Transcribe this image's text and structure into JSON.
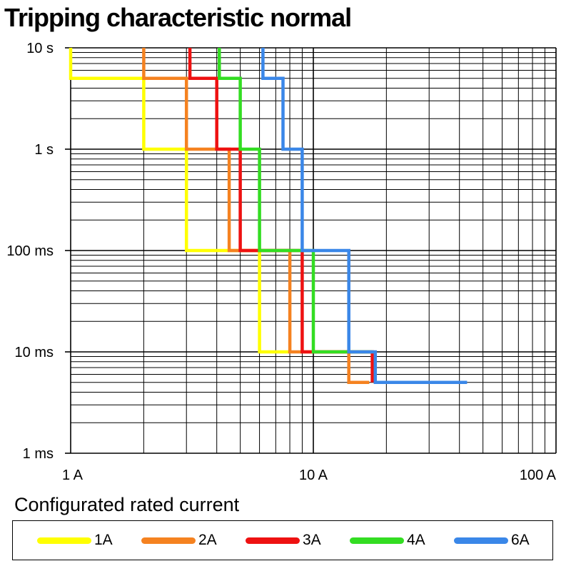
{
  "chart_data": {
    "type": "line",
    "title": "Tripping characteristic normal",
    "x_scale": "log",
    "y_scale": "log",
    "xlim": [
      1,
      100
    ],
    "ylim": [
      0.001,
      10
    ],
    "x_ticks": [
      {
        "value": 1,
        "label": "1 A"
      },
      {
        "value": 10,
        "label": "10 A"
      },
      {
        "value": 100,
        "label": "100 A"
      }
    ],
    "y_ticks": [
      {
        "value": 10,
        "label": "10 s"
      },
      {
        "value": 1,
        "label": "1 s"
      },
      {
        "value": 0.1,
        "label": "100 ms"
      },
      {
        "value": 0.01,
        "label": "10 ms"
      },
      {
        "value": 0.001,
        "label": "1 ms"
      }
    ],
    "grid": true,
    "legend_title": "Configurated rated current",
    "legend_position": "bottom",
    "series": [
      {
        "name": "1A",
        "color": "#ffff00",
        "points": [
          [
            1.0,
            10
          ],
          [
            1.0,
            5
          ],
          [
            2.0,
            5
          ],
          [
            2.0,
            1
          ],
          [
            3.0,
            1
          ],
          [
            3.0,
            0.1
          ],
          [
            6.0,
            0.1
          ],
          [
            6.0,
            0.01
          ],
          [
            8.0,
            0.01
          ]
        ]
      },
      {
        "name": "2A",
        "color": "#f58220",
        "points": [
          [
            2.0,
            10
          ],
          [
            2.0,
            5
          ],
          [
            3.0,
            5
          ],
          [
            3.0,
            1
          ],
          [
            4.5,
            1
          ],
          [
            4.5,
            0.1
          ],
          [
            8.0,
            0.1
          ],
          [
            8.0,
            0.01
          ],
          [
            14,
            0.01
          ],
          [
            14,
            0.005
          ],
          [
            17,
            0.005
          ]
        ]
      },
      {
        "name": "3A",
        "color": "#ee1111",
        "points": [
          [
            3.1,
            10
          ],
          [
            3.1,
            5
          ],
          [
            4.0,
            5
          ],
          [
            4.0,
            1
          ],
          [
            5.0,
            1
          ],
          [
            5.0,
            0.1
          ],
          [
            9.0,
            0.1
          ],
          [
            9.0,
            0.01
          ],
          [
            17.5,
            0.01
          ],
          [
            17.5,
            0.005
          ]
        ]
      },
      {
        "name": "4A",
        "color": "#33dd22",
        "points": [
          [
            4.1,
            10
          ],
          [
            4.1,
            5
          ],
          [
            5.0,
            5
          ],
          [
            5.0,
            1
          ],
          [
            6.0,
            1
          ],
          [
            6.0,
            0.1
          ],
          [
            10.0,
            0.1
          ],
          [
            10.0,
            0.01
          ],
          [
            17.5,
            0.01
          ]
        ]
      },
      {
        "name": "6A",
        "color": "#3a87e8",
        "points": [
          [
            6.2,
            10
          ],
          [
            6.2,
            5
          ],
          [
            7.5,
            5
          ],
          [
            7.5,
            1
          ],
          [
            9.0,
            1
          ],
          [
            9.0,
            0.1
          ],
          [
            14.0,
            0.1
          ],
          [
            14.0,
            0.01
          ],
          [
            18.0,
            0.01
          ],
          [
            18.0,
            0.005
          ],
          [
            43,
            0.005
          ]
        ]
      }
    ]
  }
}
